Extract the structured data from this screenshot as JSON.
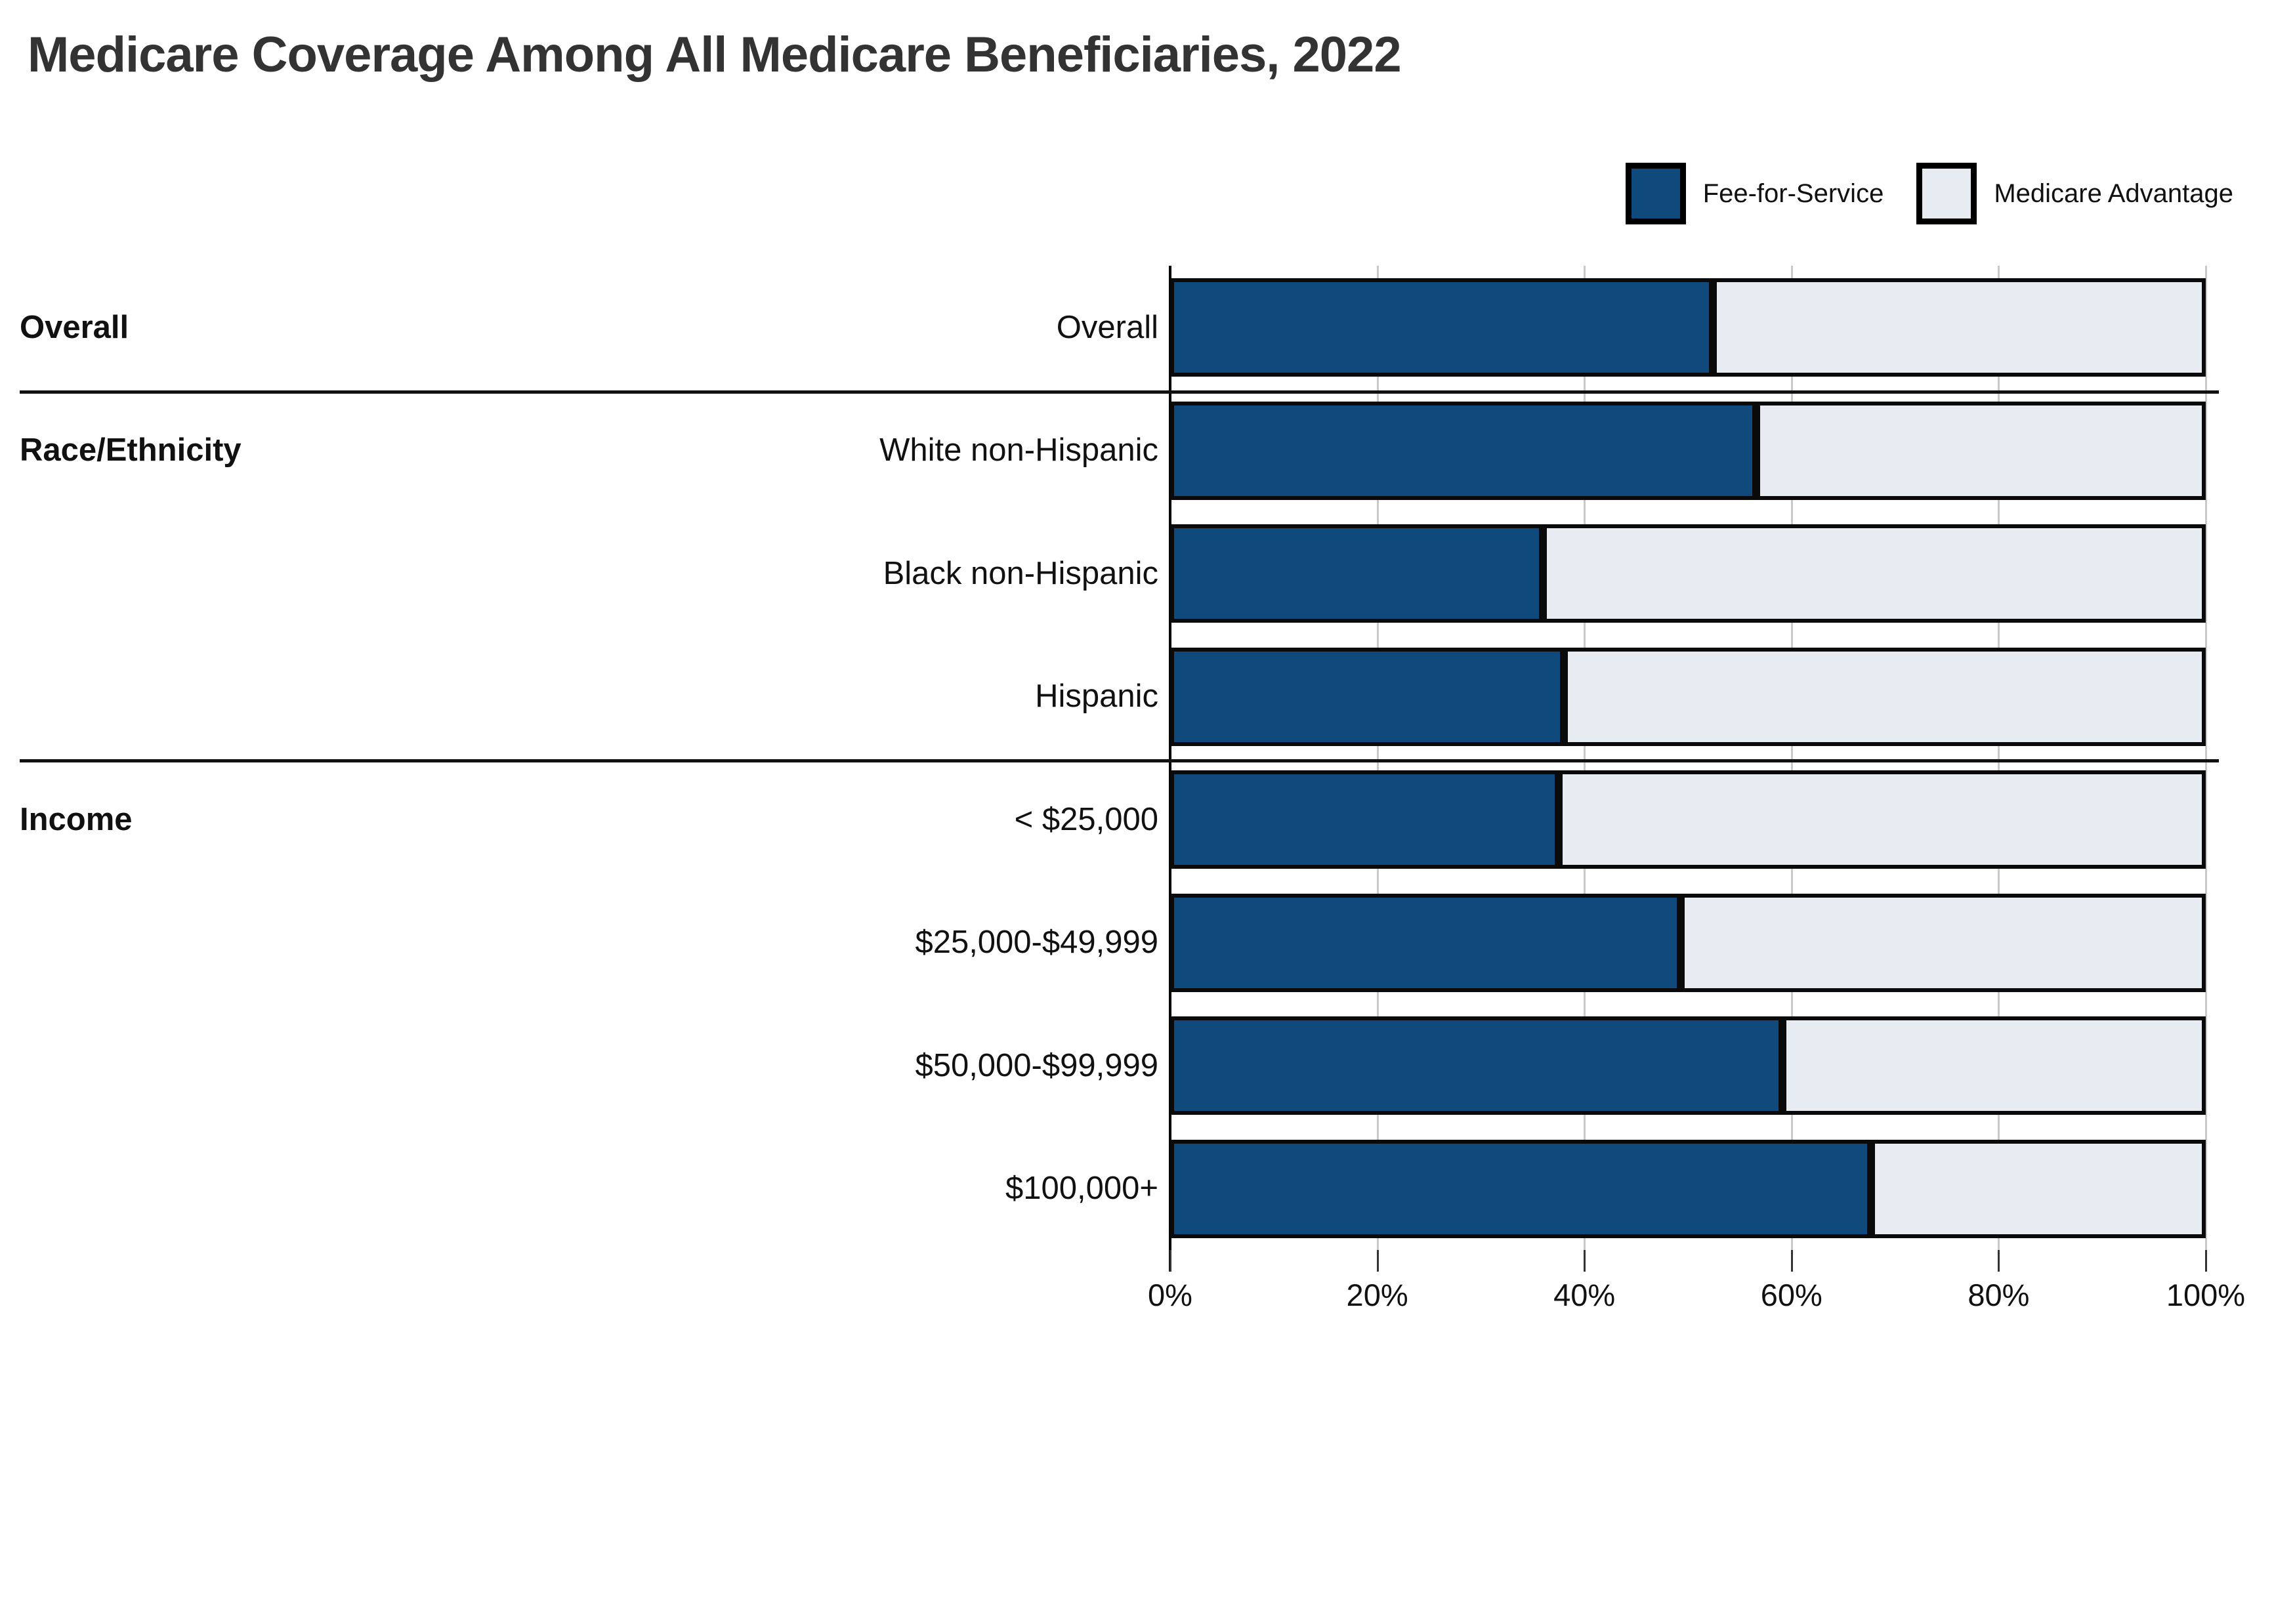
{
  "title": "Medicare Coverage Among All Medicare Beneficiaries, 2022",
  "legend": [
    {
      "label": "Fee-for-Service",
      "color": "#104a7d"
    },
    {
      "label": "Medicare Advantage",
      "color": "#e7ebf2"
    }
  ],
  "colors": {
    "fee_for_service": "#104a7d",
    "medicare_advantage": "#e7ebf2",
    "bar_border": "#0a0a0a",
    "gridline": "#c9c9c9",
    "title_text": "#333333"
  },
  "chart_data": {
    "type": "bar",
    "orientation": "horizontal",
    "stacked": true,
    "title": "Medicare Coverage Among All Medicare Beneficiaries, 2022",
    "categories": [
      "Overall",
      "White non-Hispanic",
      "Black non-Hispanic",
      "Hispanic",
      "< $25,000",
      "$25,000-$49,999",
      "$50,000-$99,999",
      "$100,000+"
    ],
    "series": [
      {
        "name": "Fee-for-Service",
        "values": [
          52.4,
          56.6,
          36.0,
          38.0,
          37.5,
          49.3,
          59.1,
          67.7
        ]
      },
      {
        "name": "Medicare Advantage",
        "values": [
          47.6,
          43.4,
          64.0,
          62.0,
          62.5,
          50.7,
          40.9,
          32.3
        ]
      }
    ],
    "groups": [
      {
        "label": "Overall",
        "category_indices": [
          0
        ]
      },
      {
        "label": "Race/Ethnicity",
        "category_indices": [
          1,
          2,
          3
        ]
      },
      {
        "label": "Income",
        "category_indices": [
          4,
          5,
          6,
          7
        ]
      }
    ],
    "x_ticks": [
      "0%",
      "20%",
      "40%",
      "60%",
      "80%",
      "100%"
    ],
    "xlim": [
      0,
      100
    ],
    "xlabel": "",
    "ylabel": "",
    "grid": true,
    "legend_position": "top-right"
  }
}
